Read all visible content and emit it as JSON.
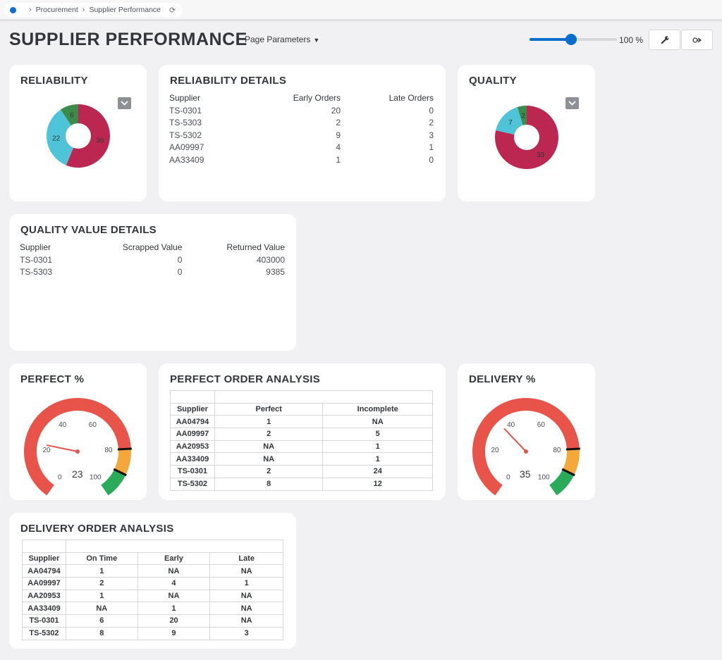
{
  "breadcrumb": {
    "items": [
      "Procurement",
      "Supplier Performance"
    ]
  },
  "header": {
    "title": "SUPPLIER PERFORMANCE",
    "page_parameters": "Page Parameters",
    "zoom": "100 %",
    "zoom_fraction": 0.45
  },
  "reliability": {
    "title": "RELIABILITY",
    "chart_data": {
      "type": "pie",
      "values": [
        36,
        22,
        6
      ],
      "colors": [
        "#bb2750",
        "#4fc3d7",
        "#3b8b4a"
      ],
      "inner_ratio": 0.4
    },
    "labels": [
      "36",
      "22",
      "6"
    ]
  },
  "reliability_details": {
    "title": "RELIABILITY DETAILS",
    "columns": [
      "Supplier",
      "Early Orders",
      "Late Orders"
    ],
    "rows": [
      [
        "TS-0301",
        "20",
        "0"
      ],
      [
        "TS-5303",
        "2",
        "2"
      ],
      [
        "TS-5302",
        "9",
        "3"
      ],
      [
        "AA09997",
        "4",
        "1"
      ],
      [
        "AA33409",
        "1",
        "0"
      ]
    ]
  },
  "quality": {
    "title": "QUALITY",
    "chart_data": {
      "type": "pie",
      "values": [
        33,
        7,
        2
      ],
      "colors": [
        "#bb2750",
        "#4fc3d7",
        "#3b8b4a"
      ],
      "inner_ratio": 0.4
    },
    "labels": [
      "33",
      "7",
      "2"
    ]
  },
  "quality_value_details": {
    "title": "QUALITY VALUE DETAILS",
    "columns": [
      "Supplier",
      "Scrapped Value",
      "Returned Value"
    ],
    "rows": [
      [
        "TS-0301",
        "0",
        "403000"
      ],
      [
        "TS-5303",
        "0",
        "9385"
      ]
    ]
  },
  "perfect_gauge": {
    "title": "PERFECT %",
    "value": 23,
    "value_label": "23",
    "ticks": [
      "0",
      "20",
      "40",
      "60",
      "80",
      "100"
    ],
    "bands": [
      {
        "from": 0,
        "to": 80,
        "color": "#e8534a"
      },
      {
        "from": 80,
        "to": 90,
        "color": "#f4a73a"
      },
      {
        "from": 90,
        "to": 100,
        "color": "#2aab5a"
      }
    ]
  },
  "perfect_order_analysis": {
    "title": "PERFECT ORDER ANALYSIS",
    "columns": [
      "Supplier",
      "Perfect",
      "Incomplete"
    ],
    "rows": [
      [
        "AA04794",
        "1",
        "NA"
      ],
      [
        "AA09997",
        "2",
        "5"
      ],
      [
        "AA20953",
        "NA",
        "1"
      ],
      [
        "AA33409",
        "NA",
        "1"
      ],
      [
        "TS-0301",
        "2",
        "24"
      ],
      [
        "TS-5302",
        "8",
        "12"
      ]
    ]
  },
  "delivery_gauge": {
    "title": "DELIVERY %",
    "value": 35,
    "value_label": "35",
    "ticks": [
      "0",
      "20",
      "40",
      "60",
      "80",
      "100"
    ],
    "bands": [
      {
        "from": 0,
        "to": 80,
        "color": "#e8534a"
      },
      {
        "from": 80,
        "to": 90,
        "color": "#f4a73a"
      },
      {
        "from": 90,
        "to": 100,
        "color": "#2aab5a"
      }
    ]
  },
  "delivery_order_analysis": {
    "title": "DELIVERY ORDER ANALYSIS",
    "columns": [
      "Supplier",
      "On Time",
      "Early",
      "Late"
    ],
    "rows": [
      [
        "AA04794",
        "1",
        "NA",
        "NA"
      ],
      [
        "AA09997",
        "2",
        "4",
        "1"
      ],
      [
        "AA20953",
        "1",
        "NA",
        "NA"
      ],
      [
        "AA33409",
        "NA",
        "1",
        "NA"
      ],
      [
        "TS-0301",
        "6",
        "20",
        "NA"
      ],
      [
        "TS-5302",
        "8",
        "9",
        "3"
      ]
    ]
  },
  "icons": {
    "wrench": "wrench-icon",
    "share": "share-icon",
    "refresh": "refresh-icon",
    "chevron": "chevron-down-icon"
  }
}
